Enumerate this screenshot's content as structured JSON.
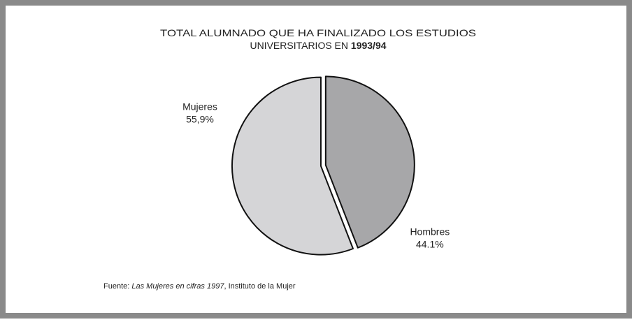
{
  "chart_data": {
    "type": "pie",
    "title": {
      "line1": "TOTAL ALUMNADO QUE HA FINALIZADO LOS ESTUDIOS",
      "line2": "UNIVERSITARIOS EN",
      "year": "1993/94"
    },
    "categories": [
      "Hombres",
      "Mujeres"
    ],
    "values": [
      44.1,
      55.9
    ],
    "value_labels": [
      "44.1%",
      "55,9%"
    ],
    "colors": [
      "#a7a7a9",
      "#d5d5d7"
    ],
    "exploded": [
      "Hombres"
    ],
    "source": {
      "label": "Fuente:",
      "work": "Las Mujeres en cifras 1997",
      "publisher": ", Instituto de la Mujer"
    }
  }
}
